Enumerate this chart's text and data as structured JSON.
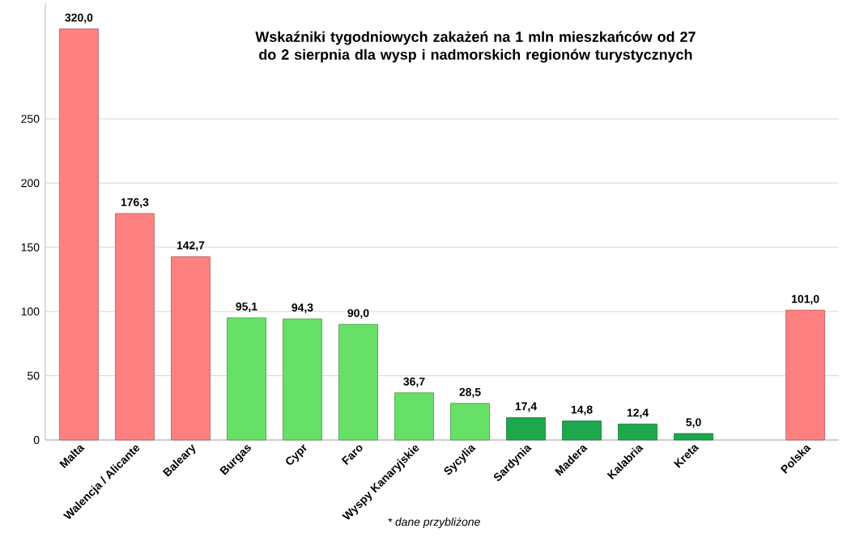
{
  "chart_data": {
    "type": "bar",
    "title": "Wskaźniki tygodniowych zakażeń na 1 mln mieszkańców od 27 do 2 sierpnia dla wysp i nadmorskich regionów turystycznych",
    "categories": [
      "Malta",
      "Walencja / Alicante",
      "Baleary",
      "Burgas",
      "Cypr",
      "Faro",
      "Wyspy Kanaryjskie",
      "Sycylia",
      "Sardynia",
      "Madera",
      "Kalabria",
      "Kreta",
      null,
      "Polska"
    ],
    "values": [
      320.0,
      176.3,
      142.7,
      95.1,
      94.3,
      90.0,
      36.7,
      28.5,
      17.4,
      14.8,
      12.4,
      5.0,
      null,
      101.0
    ],
    "value_labels": [
      "320,0",
      "176,3",
      "142,7",
      "95,1",
      "94,3",
      "90,0",
      "36,7",
      "28,5",
      "17,4",
      "14,8",
      "12,4",
      "5,0",
      null,
      "101,0"
    ],
    "colors": [
      "#ff8080",
      "#ff8080",
      "#ff8080",
      "#66e066",
      "#66e066",
      "#66e066",
      "#66e066",
      "#66e066",
      "#1ea84e",
      "#1ea84e",
      "#1ea84e",
      "#1ea84e",
      "#ffffff",
      "#ff8080"
    ],
    "ylim": [
      0,
      340
    ],
    "yticks": [
      0,
      50,
      100,
      150,
      200,
      250
    ],
    "grid": "y",
    "annotations": [
      "* dane przybliżone"
    ]
  }
}
